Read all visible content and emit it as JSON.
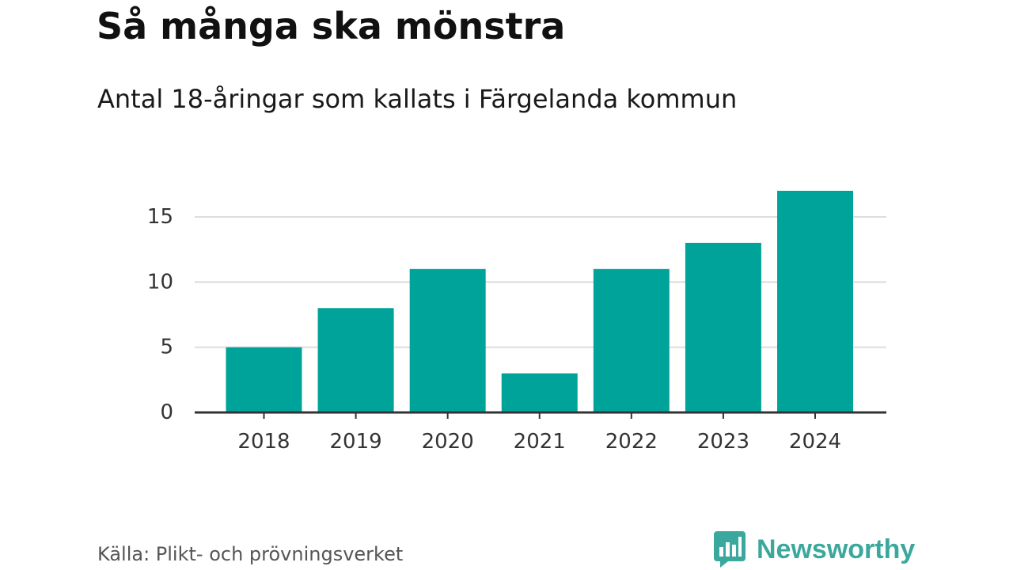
{
  "title": "Så många ska mönstra",
  "subtitle": "Antal 18-åringar som kallats i Färgelanda kommun",
  "source": "Källa: Plikt- och prövningsverket",
  "brand": {
    "name": "Newsworthy",
    "color": "#3aa89c"
  },
  "colors": {
    "bar": "#00a39a",
    "grid": "#dddddd",
    "axis": "#333333"
  },
  "chart_data": {
    "type": "bar",
    "categories": [
      "2018",
      "2019",
      "2020",
      "2021",
      "2022",
      "2023",
      "2024"
    ],
    "values": [
      5,
      8,
      11,
      3,
      11,
      13,
      17
    ],
    "yticks": [
      0,
      5,
      10,
      15
    ],
    "ylim": [
      0,
      17
    ],
    "grid": true,
    "xlabel": "",
    "ylabel": ""
  }
}
